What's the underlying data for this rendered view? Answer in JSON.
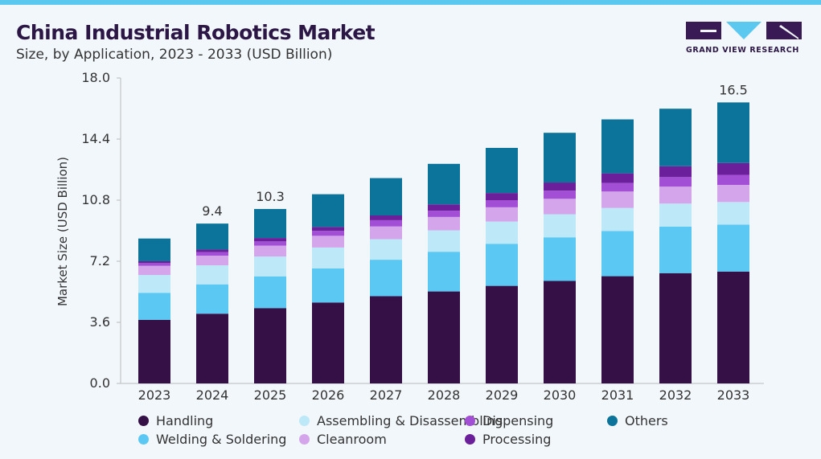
{
  "header": {
    "title": "China Industrial Robotics Market",
    "subtitle": "Size, by Application, 2023 - 2033 (USD Billion)"
  },
  "logo": {
    "text": "GRAND VIEW RESEARCH"
  },
  "chart_data": {
    "type": "bar",
    "stacked": true,
    "title": "China Industrial Robotics Market",
    "subtitle": "Size, by Application, 2023 - 2033 (USD Billion)",
    "xlabel": "",
    "ylabel": "Market Size (USD Billion)",
    "ylim": [
      0,
      18
    ],
    "yticks": [
      "0.0",
      "3.6",
      "7.2",
      "10.8",
      "14.4",
      "18.0"
    ],
    "grid": false,
    "legend_position": "bottom",
    "categories": [
      "2023",
      "2024",
      "2025",
      "2026",
      "2027",
      "2028",
      "2029",
      "2030",
      "2031",
      "2032",
      "2033"
    ],
    "series": [
      {
        "name": "Handling",
        "color": "#341047",
        "values": [
          3.75,
          4.11,
          4.44,
          4.77,
          5.14,
          5.42,
          5.75,
          6.04,
          6.32,
          6.5,
          6.59
        ]
      },
      {
        "name": "Welding & Soldering",
        "color": "#5bc8f3",
        "values": [
          1.59,
          1.73,
          1.87,
          2.01,
          2.15,
          2.34,
          2.48,
          2.57,
          2.66,
          2.74,
          2.77
        ]
      },
      {
        "name": "Assembling & Disassembling",
        "color": "#bde8f8",
        "values": [
          1.05,
          1.12,
          1.17,
          1.23,
          1.21,
          1.26,
          1.31,
          1.36,
          1.36,
          1.36,
          1.33
        ]
      },
      {
        "name": "Cleanroom",
        "color": "#d4a5ea",
        "values": [
          0.54,
          0.57,
          0.64,
          0.69,
          0.75,
          0.79,
          0.84,
          0.91,
          0.97,
          1.0,
          1.01
        ]
      },
      {
        "name": "Dispensing",
        "color": "#a24fd6",
        "values": [
          0.16,
          0.21,
          0.25,
          0.29,
          0.37,
          0.37,
          0.42,
          0.48,
          0.51,
          0.56,
          0.59
        ]
      },
      {
        "name": "Processing",
        "color": "#6b1f9a",
        "values": [
          0.11,
          0.15,
          0.2,
          0.23,
          0.28,
          0.37,
          0.42,
          0.48,
          0.56,
          0.64,
          0.7
        ]
      },
      {
        "name": "Others",
        "color": "#0c739a",
        "values": [
          1.34,
          1.53,
          1.71,
          1.93,
          2.2,
          2.39,
          2.66,
          2.93,
          3.18,
          3.39,
          3.57
        ]
      }
    ],
    "data_labels": [
      {
        "category": "2024",
        "text": "9.4"
      },
      {
        "category": "2025",
        "text": "10.3"
      },
      {
        "category": "2033",
        "text": "16.5"
      }
    ]
  }
}
